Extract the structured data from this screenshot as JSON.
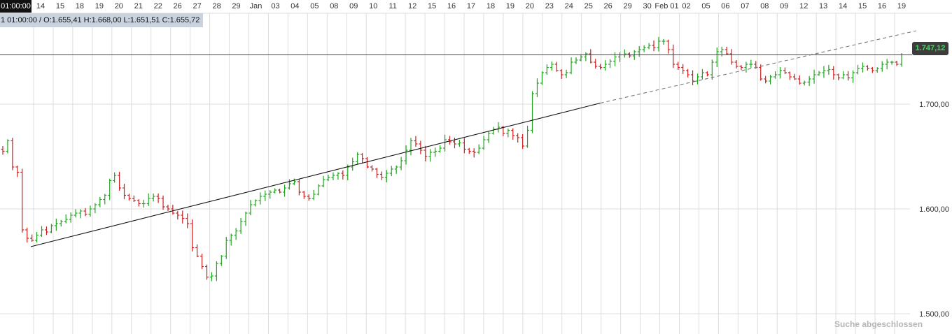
{
  "header": {
    "time_badge": "01:00:00",
    "ohlc_text": "1 01:00:00 / O:1.655,41  H:1.668,00  L:1.651,51  C:1.655,72"
  },
  "price_badge": "1.747,12",
  "status": "Suche abgeschlossen",
  "colors": {
    "up": "#1fa51f",
    "down": "#cc1f1f",
    "grid": "#dddddd",
    "trend": "#111111"
  },
  "chart_data": {
    "type": "ohlc",
    "title": "",
    "xlabel": "",
    "ylabel": "",
    "ylim": [
      1475,
      1790
    ],
    "grid": true,
    "y_ticks": [
      {
        "value": 1500,
        "label": "1.500,00"
      },
      {
        "value": 1600,
        "label": "1.600,00"
      },
      {
        "value": 1700,
        "label": "1.700,00"
      }
    ],
    "x_ticks": [
      "14",
      "15",
      "18",
      "19",
      "20",
      "21",
      "22",
      "26",
      "27",
      "28",
      "29",
      "Jan",
      "03",
      "04",
      "05",
      "08",
      "09",
      "10",
      "11",
      "12",
      "15",
      "16",
      "17",
      "18",
      "19",
      "20",
      "23",
      "24",
      "25",
      "26",
      "29",
      "30",
      "Feb 01",
      "02",
      "05",
      "06",
      "07",
      "08",
      "09",
      "12",
      "13",
      "14",
      "15",
      "16",
      "19"
    ],
    "current_price": 1747.12,
    "close_series": [
      1655,
      1665,
      1640,
      1635,
      1580,
      1572,
      1570,
      1575,
      1580,
      1578,
      1584,
      1586,
      1588,
      1590,
      1594,
      1596,
      1598,
      1595,
      1600,
      1604,
      1609,
      1613,
      1627,
      1632,
      1620,
      1613,
      1610,
      1608,
      1605,
      1605,
      1610,
      1612,
      1610,
      1602,
      1600,
      1596,
      1594,
      1591,
      1586,
      1563,
      1555,
      1545,
      1535,
      1536,
      1548,
      1555,
      1570,
      1575,
      1579,
      1588,
      1596,
      1604,
      1608,
      1612,
      1614,
      1616,
      1618,
      1616,
      1620,
      1624,
      1626,
      1616,
      1612,
      1610,
      1614,
      1622,
      1628,
      1630,
      1632,
      1634,
      1632,
      1640,
      1645,
      1652,
      1648,
      1640,
      1638,
      1633,
      1630,
      1634,
      1638,
      1640,
      1646,
      1656,
      1665,
      1662,
      1656,
      1650,
      1654,
      1655,
      1658,
      1666,
      1664,
      1662,
      1663,
      1657,
      1655,
      1654,
      1658,
      1666,
      1672,
      1676,
      1678,
      1672,
      1675,
      1670,
      1668,
      1660,
      1675,
      1710,
      1720,
      1730,
      1735,
      1738,
      1732,
      1728,
      1730,
      1740,
      1742,
      1745,
      1748,
      1740,
      1736,
      1735,
      1738,
      1741,
      1745,
      1747,
      1748,
      1746,
      1750,
      1752,
      1754,
      1756,
      1754,
      1760,
      1760,
      1752,
      1738,
      1735,
      1732,
      1728,
      1722,
      1726,
      1730,
      1728,
      1740,
      1750,
      1752,
      1748,
      1740,
      1736,
      1735,
      1738,
      1738,
      1735,
      1724,
      1722,
      1726,
      1728,
      1732,
      1730,
      1726,
      1724,
      1720,
      1721,
      1724,
      1728,
      1730,
      1732,
      1733,
      1728,
      1725,
      1728,
      1725,
      1730,
      1734,
      1736,
      1734,
      1732,
      1734,
      1738,
      1740,
      1740,
      1738,
      1747
    ],
    "trendlines": [
      {
        "from": [
          0,
          1564
        ],
        "to": [
          123,
          1701
        ],
        "style": "solid"
      },
      {
        "from": [
          123,
          1701
        ],
        "to": [
          188,
          1770
        ],
        "style": "dashed"
      }
    ],
    "horizontal_line": 1747
  }
}
